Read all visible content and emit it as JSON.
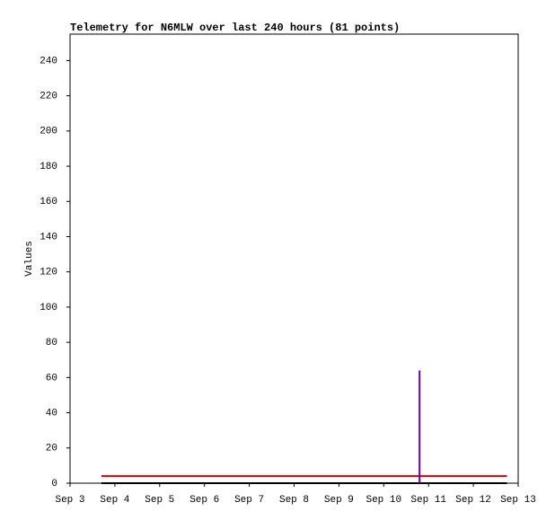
{
  "chart_data": {
    "type": "line",
    "title": "Telemetry for N6MLW over last 240 hours (81 points)",
    "ylabel": "Values",
    "xlim": [
      3,
      13
    ],
    "xticks": [
      {
        "value": 3,
        "label": "Sep 3"
      },
      {
        "value": 4,
        "label": "Sep 4"
      },
      {
        "value": 5,
        "label": "Sep 5"
      },
      {
        "value": 6,
        "label": "Sep 6"
      },
      {
        "value": 7,
        "label": "Sep 7"
      },
      {
        "value": 8,
        "label": "Sep 8"
      },
      {
        "value": 9,
        "label": "Sep 9"
      },
      {
        "value": 10,
        "label": "Sep 10"
      },
      {
        "value": 11,
        "label": "Sep 11"
      },
      {
        "value": 12,
        "label": "Sep 12"
      },
      {
        "value": 13,
        "label": "Sep 13"
      }
    ],
    "ylim": [
      0,
      255
    ],
    "yticks": [
      0,
      20,
      40,
      60,
      80,
      100,
      120,
      140,
      160,
      180,
      200,
      220,
      240
    ],
    "grid": false,
    "series": [
      {
        "color": "#000000",
        "x": [
          3.7,
          12.75
        ],
        "values": [
          0,
          0
        ]
      },
      {
        "color": "#dd0000",
        "x": [
          3.7,
          12.75
        ],
        "values": [
          4,
          4
        ]
      },
      {
        "color": "#660099",
        "x": [
          10.8,
          10.8
        ],
        "values": [
          0,
          64
        ]
      }
    ]
  }
}
